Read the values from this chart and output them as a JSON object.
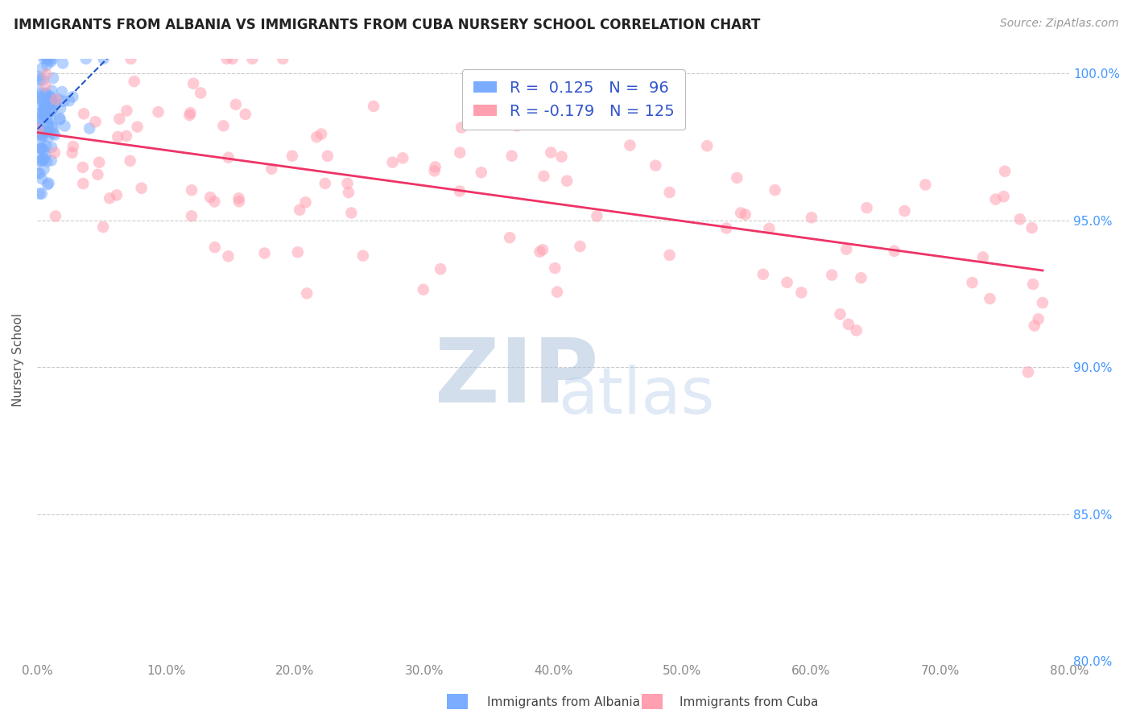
{
  "title": "IMMIGRANTS FROM ALBANIA VS IMMIGRANTS FROM CUBA NURSERY SCHOOL CORRELATION CHART",
  "source": "Source: ZipAtlas.com",
  "ylabel": "Nursery School",
  "legend_label1": "Immigrants from Albania",
  "legend_label2": "Immigrants from Cuba",
  "R1": 0.125,
  "N1": 96,
  "R2": -0.179,
  "N2": 125,
  "xlim": [
    0.0,
    80.0
  ],
  "ylim": [
    80.0,
    100.5
  ],
  "xticks": [
    0.0,
    10.0,
    20.0,
    30.0,
    40.0,
    50.0,
    60.0,
    70.0,
    80.0
  ],
  "yticks": [
    80.0,
    85.0,
    90.0,
    95.0,
    100.0
  ],
  "color_albania": "#7AADFF",
  "color_cuba": "#FF9FB0",
  "trendline_color_albania": "#2255CC",
  "trendline_color_cuba": "#EE3366",
  "background_color": "#FFFFFF",
  "tick_color_x": "#888888",
  "tick_color_y": "#4499FF",
  "title_color": "#222222",
  "source_color": "#999999",
  "ylabel_color": "#555555",
  "legend_label_color": "#444444",
  "grid_color": "#CCCCCC",
  "watermark_zip_color": "#B0C4DE",
  "watermark_atlas_color": "#B0C8E8"
}
